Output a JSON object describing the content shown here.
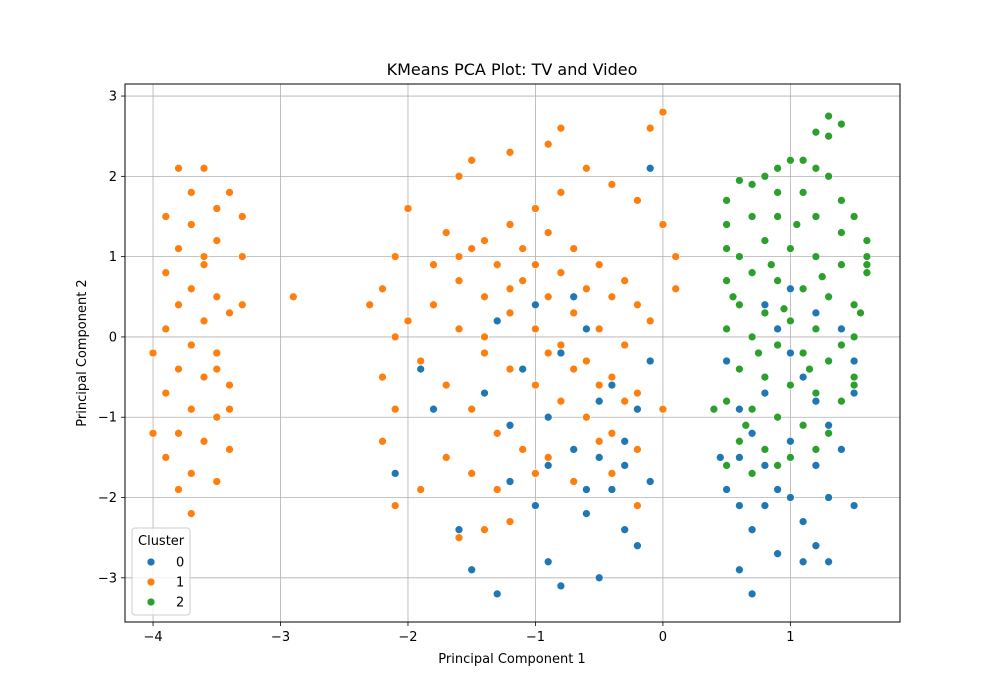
{
  "chart_data": {
    "type": "scatter",
    "title": "KMeans PCA Plot: TV and Video",
    "xlabel": "Principal Component 1",
    "ylabel": "Principal Component 2",
    "xlim": [
      -4.22,
      1.86
    ],
    "ylim": [
      -3.55,
      3.15
    ],
    "xticks": [
      -4,
      -3,
      -2,
      -1,
      0,
      1
    ],
    "xtick_labels": [
      "−4",
      "−3",
      "−2",
      "−1",
      "0",
      "1"
    ],
    "yticks": [
      -3,
      -2,
      -1,
      0,
      1,
      2,
      3
    ],
    "ytick_labels": [
      "−3",
      "−2",
      "−1",
      "0",
      "1",
      "2",
      "3"
    ],
    "grid": true,
    "legend": {
      "title": "Cluster",
      "placement": "lower-left"
    },
    "series": [
      {
        "name": "0",
        "color": "#1f77b4",
        "points": [
          [
            -0.1,
            2.1
          ],
          [
            -0.1,
            -0.3
          ],
          [
            -0.3,
            -1.3
          ],
          [
            -0.5,
            -1.5
          ],
          [
            -0.7,
            -1.4
          ],
          [
            -0.9,
            -1.6
          ],
          [
            -1.2,
            -1.8
          ],
          [
            -1.0,
            -2.1
          ],
          [
            -0.6,
            -2.2
          ],
          [
            -0.3,
            -2.4
          ],
          [
            -0.9,
            -2.8
          ],
          [
            -0.8,
            -3.1
          ],
          [
            -1.3,
            -3.2
          ],
          [
            -0.5,
            -3.0
          ],
          [
            -0.2,
            -2.6
          ],
          [
            -0.4,
            -1.9
          ],
          [
            -1.5,
            -2.9
          ],
          [
            -1.6,
            -2.4
          ],
          [
            -1.4,
            -0.7
          ],
          [
            -1.1,
            -0.4
          ],
          [
            -0.8,
            -0.2
          ],
          [
            -0.6,
            0.1
          ],
          [
            -1.0,
            0.4
          ],
          [
            -1.3,
            0.2
          ],
          [
            -0.7,
            0.5
          ],
          [
            -0.4,
            -0.6
          ],
          [
            -0.2,
            -0.9
          ],
          [
            -1.8,
            -0.9
          ],
          [
            -2.1,
            -1.7
          ],
          [
            -1.9,
            -0.4
          ],
          [
            -0.9,
            -1.0
          ],
          [
            -0.5,
            -0.8
          ],
          [
            -1.2,
            -1.1
          ],
          [
            -0.3,
            -1.6
          ],
          [
            -0.1,
            -1.8
          ],
          [
            -0.6,
            -1.9
          ],
          [
            0.5,
            -0.3
          ],
          [
            0.6,
            -0.9
          ],
          [
            0.7,
            -1.2
          ],
          [
            0.8,
            -1.6
          ],
          [
            0.9,
            -1.9
          ],
          [
            1.0,
            -2.0
          ],
          [
            1.1,
            -2.3
          ],
          [
            1.2,
            -2.6
          ],
          [
            1.3,
            -2.8
          ],
          [
            0.7,
            -2.4
          ],
          [
            0.6,
            -2.9
          ],
          [
            0.7,
            -3.2
          ],
          [
            0.9,
            -2.7
          ],
          [
            1.1,
            -2.8
          ],
          [
            0.5,
            -1.9
          ],
          [
            0.6,
            -2.1
          ],
          [
            1.4,
            -1.4
          ],
          [
            1.3,
            -1.1
          ],
          [
            1.2,
            -0.8
          ],
          [
            1.1,
            -0.5
          ],
          [
            1.0,
            -0.2
          ],
          [
            0.9,
            0.1
          ],
          [
            0.8,
            0.4
          ],
          [
            1.0,
            0.6
          ],
          [
            1.2,
            0.3
          ],
          [
            1.4,
            0.1
          ],
          [
            1.5,
            -0.3
          ],
          [
            1.5,
            -0.7
          ],
          [
            0.8,
            -0.7
          ],
          [
            0.6,
            -1.5
          ],
          [
            1.0,
            -1.3
          ],
          [
            1.2,
            -1.6
          ],
          [
            1.3,
            -2.0
          ],
          [
            0.8,
            -2.1
          ],
          [
            1.5,
            -2.1
          ],
          [
            0.45,
            -1.5
          ]
        ]
      },
      {
        "name": "1",
        "color": "#ff7f0e",
        "points": [
          [
            -3.8,
            2.1
          ],
          [
            -3.6,
            2.1
          ],
          [
            -3.7,
            1.8
          ],
          [
            -3.5,
            1.6
          ],
          [
            -3.4,
            1.8
          ],
          [
            -3.9,
            1.5
          ],
          [
            -3.7,
            1.4
          ],
          [
            -3.5,
            1.2
          ],
          [
            -3.8,
            1.1
          ],
          [
            -3.6,
            0.9
          ],
          [
            -3.9,
            0.8
          ],
          [
            -3.7,
            0.6
          ],
          [
            -3.5,
            0.5
          ],
          [
            -3.8,
            0.4
          ],
          [
            -3.6,
            0.2
          ],
          [
            -3.4,
            0.3
          ],
          [
            -3.9,
            0.1
          ],
          [
            -3.7,
            -0.1
          ],
          [
            -3.5,
            -0.2
          ],
          [
            -3.8,
            -0.4
          ],
          [
            -3.6,
            -0.5
          ],
          [
            -3.4,
            -0.6
          ],
          [
            -3.9,
            -0.7
          ],
          [
            -3.7,
            -0.9
          ],
          [
            -3.5,
            -1.0
          ],
          [
            -3.8,
            -1.2
          ],
          [
            -3.6,
            -1.3
          ],
          [
            -3.4,
            -1.4
          ],
          [
            -3.9,
            -1.5
          ],
          [
            -3.7,
            -1.7
          ],
          [
            -3.5,
            -1.8
          ],
          [
            -3.8,
            -1.9
          ],
          [
            -3.7,
            -2.2
          ],
          [
            -4.0,
            -1.2
          ],
          [
            -4.0,
            -0.2
          ],
          [
            -3.3,
            1.0
          ],
          [
            -3.3,
            0.4
          ],
          [
            -3.4,
            -0.9
          ],
          [
            -3.3,
            1.5
          ],
          [
            -2.9,
            0.5
          ],
          [
            -3.6,
            1.0
          ],
          [
            -3.5,
            -0.4
          ],
          [
            0.0,
            2.8
          ],
          [
            -0.1,
            2.6
          ],
          [
            -0.8,
            2.6
          ],
          [
            -0.9,
            2.4
          ],
          [
            -1.2,
            2.3
          ],
          [
            -1.5,
            2.2
          ],
          [
            -1.6,
            2.0
          ],
          [
            -2.0,
            1.6
          ],
          [
            -2.1,
            1.0
          ],
          [
            -2.2,
            0.6
          ],
          [
            -2.3,
            0.4
          ],
          [
            -2.1,
            0.0
          ],
          [
            -2.2,
            -0.5
          ],
          [
            -2.1,
            -0.9
          ],
          [
            -2.2,
            -1.3
          ],
          [
            -2.1,
            -2.1
          ],
          [
            -1.9,
            -1.9
          ],
          [
            -1.6,
            -2.5
          ],
          [
            -1.4,
            -2.4
          ],
          [
            -1.2,
            -2.3
          ],
          [
            -1.0,
            -1.7
          ],
          [
            -0.7,
            -1.8
          ],
          [
            -0.4,
            -1.7
          ],
          [
            -0.2,
            -2.1
          ],
          [
            -1.8,
            0.9
          ],
          [
            -1.6,
            0.7
          ],
          [
            -1.4,
            0.5
          ],
          [
            -1.2,
            0.3
          ],
          [
            -1.0,
            0.1
          ],
          [
            -0.8,
            -0.1
          ],
          [
            -0.6,
            -0.3
          ],
          [
            -0.4,
            -0.5
          ],
          [
            -0.2,
            -0.7
          ],
          [
            0.0,
            -0.9
          ],
          [
            -1.7,
            1.3
          ],
          [
            -1.5,
            1.1
          ],
          [
            -1.3,
            0.9
          ],
          [
            -1.1,
            0.7
          ],
          [
            -0.9,
            0.5
          ],
          [
            -0.7,
            0.3
          ],
          [
            -0.5,
            0.1
          ],
          [
            -0.3,
            -0.1
          ],
          [
            -0.1,
            0.2
          ],
          [
            0.1,
            0.6
          ],
          [
            0.1,
            1.0
          ],
          [
            0.0,
            1.4
          ],
          [
            -0.2,
            1.7
          ],
          [
            -0.4,
            1.9
          ],
          [
            -0.6,
            2.1
          ],
          [
            -0.8,
            1.8
          ],
          [
            -1.0,
            1.6
          ],
          [
            -1.2,
            1.4
          ],
          [
            -1.4,
            1.2
          ],
          [
            -1.6,
            1.0
          ],
          [
            -1.8,
            0.4
          ],
          [
            -1.6,
            0.1
          ],
          [
            -1.4,
            -0.2
          ],
          [
            -1.2,
            -0.4
          ],
          [
            -1.0,
            -0.6
          ],
          [
            -0.8,
            -0.8
          ],
          [
            -0.6,
            -1.0
          ],
          [
            -0.4,
            -1.2
          ],
          [
            -0.2,
            -1.4
          ],
          [
            -1.9,
            -0.3
          ],
          [
            -1.7,
            -0.6
          ],
          [
            -1.5,
            -0.9
          ],
          [
            -1.3,
            -1.2
          ],
          [
            -1.1,
            -1.4
          ],
          [
            -0.9,
            -1.5
          ],
          [
            -0.5,
            -1.3
          ],
          [
            -1.7,
            -1.5
          ],
          [
            -1.5,
            -1.7
          ],
          [
            -1.3,
            -1.9
          ],
          [
            -0.3,
            0.7
          ],
          [
            -0.5,
            0.9
          ],
          [
            -0.7,
            1.1
          ],
          [
            -0.9,
            1.3
          ],
          [
            -1.1,
            1.1
          ],
          [
            -0.2,
            0.4
          ],
          [
            -0.4,
            0.5
          ],
          [
            -0.6,
            0.6
          ],
          [
            -0.8,
            0.8
          ],
          [
            -1.0,
            0.9
          ],
          [
            -1.2,
            0.6
          ],
          [
            -1.4,
            0.0
          ],
          [
            -0.9,
            -0.2
          ],
          [
            -0.7,
            -0.4
          ],
          [
            -0.5,
            -0.6
          ],
          [
            -0.3,
            -0.8
          ],
          [
            -2.0,
            0.2
          ]
        ]
      },
      {
        "name": "2",
        "color": "#2ca02c",
        "points": [
          [
            1.3,
            2.75
          ],
          [
            1.4,
            2.65
          ],
          [
            1.2,
            2.55
          ],
          [
            1.3,
            2.5
          ],
          [
            1.0,
            2.2
          ],
          [
            1.1,
            2.2
          ],
          [
            0.9,
            2.1
          ],
          [
            0.8,
            2.0
          ],
          [
            1.2,
            2.1
          ],
          [
            1.3,
            2.0
          ],
          [
            0.6,
            1.95
          ],
          [
            0.7,
            1.9
          ],
          [
            0.9,
            1.8
          ],
          [
            1.1,
            1.8
          ],
          [
            1.4,
            1.7
          ],
          [
            1.5,
            1.5
          ],
          [
            0.5,
            1.4
          ],
          [
            0.7,
            1.5
          ],
          [
            0.9,
            1.5
          ],
          [
            1.2,
            1.5
          ],
          [
            1.4,
            1.3
          ],
          [
            1.6,
            1.2
          ],
          [
            0.5,
            1.1
          ],
          [
            0.6,
            1.0
          ],
          [
            0.8,
            1.2
          ],
          [
            1.0,
            1.1
          ],
          [
            1.2,
            1.0
          ],
          [
            1.4,
            0.9
          ],
          [
            1.6,
            0.8
          ],
          [
            0.5,
            0.7
          ],
          [
            0.7,
            0.8
          ],
          [
            0.9,
            0.7
          ],
          [
            1.1,
            0.6
          ],
          [
            1.3,
            0.5
          ],
          [
            1.5,
            0.4
          ],
          [
            0.6,
            0.4
          ],
          [
            0.8,
            0.3
          ],
          [
            1.0,
            0.2
          ],
          [
            1.2,
            0.1
          ],
          [
            1.4,
            -0.1
          ],
          [
            0.5,
            0.1
          ],
          [
            0.7,
            0.0
          ],
          [
            0.9,
            -0.1
          ],
          [
            1.1,
            -0.2
          ],
          [
            1.3,
            -0.3
          ],
          [
            1.5,
            -0.5
          ],
          [
            0.6,
            -0.4
          ],
          [
            0.8,
            -0.5
          ],
          [
            1.0,
            -0.6
          ],
          [
            1.2,
            -0.7
          ],
          [
            1.4,
            -0.8
          ],
          [
            0.5,
            -0.8
          ],
          [
            0.7,
            -0.9
          ],
          [
            0.9,
            -1.0
          ],
          [
            1.1,
            -1.1
          ],
          [
            1.3,
            -1.2
          ],
          [
            0.6,
            -1.3
          ],
          [
            0.8,
            -1.4
          ],
          [
            1.0,
            -1.5
          ],
          [
            1.2,
            -1.4
          ],
          [
            0.5,
            -1.6
          ],
          [
            0.7,
            -1.7
          ],
          [
            0.9,
            -1.6
          ],
          [
            0.4,
            -0.9
          ],
          [
            0.5,
            1.7
          ],
          [
            1.6,
            1.0
          ],
          [
            1.5,
            0.0
          ],
          [
            1.5,
            -0.6
          ],
          [
            1.55,
            0.3
          ],
          [
            1.6,
            0.9
          ],
          [
            0.55,
            0.5
          ],
          [
            0.65,
            -1.1
          ],
          [
            1.05,
            1.4
          ],
          [
            0.85,
            0.9
          ],
          [
            1.25,
            0.75
          ],
          [
            0.95,
            0.35
          ],
          [
            1.15,
            -0.4
          ],
          [
            0.75,
            -0.2
          ]
        ]
      }
    ]
  }
}
